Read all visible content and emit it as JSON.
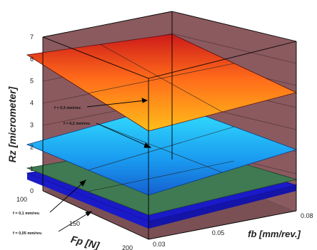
{
  "chart_data": {
    "type": "surface3d",
    "zlabel": "Rz [micrometer]",
    "xlabel": "Fp [N]",
    "ylabel": "fb [mm/rev.]",
    "z_ticks": [
      "0",
      "1",
      "2",
      "3",
      "4",
      "5",
      "6",
      "7"
    ],
    "fp_ticks": [
      "100",
      "150",
      "200"
    ],
    "fb_ticks": [
      "0.03",
      "0.05",
      "0.08"
    ],
    "zlim": [
      0,
      7
    ],
    "xlim": [
      100,
      200
    ],
    "ylim": [
      0.03,
      0.08
    ],
    "surfaces": [
      {
        "label": "f = 0,3 mm/rev.",
        "corners": {
          "fp100_fb003": 5.9,
          "fp200_fb003": 3.4,
          "fp100_fb008": 6.7,
          "fp200_fb008": 4.2
        }
      },
      {
        "label": "f = 0,2 mm/rev.",
        "corners": {
          "fp100_fb003": 2.4,
          "fp200_fb003": 0.1,
          "fp100_fb008": 3.1,
          "fp200_fb008": 0.7
        }
      },
      {
        "label": "f = 0,1 mm/rev.",
        "corners": {
          "fp100_fb003": 1.25,
          "fp200_fb003": 0.15,
          "fp100_fb008": 1.6,
          "fp200_fb008": 0.45
        }
      },
      {
        "label": "f = 0,05 mm/rev.",
        "corners": {
          "fp100_fb003": 1.1,
          "fp200_fb003": 0.0,
          "fp100_fb008": 1.45,
          "fp200_fb008": 0.3
        }
      }
    ],
    "colors": {
      "box_walls": "#8a5a5f",
      "box_edges": "#000000",
      "surface_top_high": "#cc1a1a",
      "surface_top_low": "#ffb61a",
      "surface_mid_high": "#2fe0ff",
      "surface_mid_low": "#1466d6",
      "surface_green": "#3f7a52",
      "surface_blue": "#1a1ac8"
    }
  }
}
